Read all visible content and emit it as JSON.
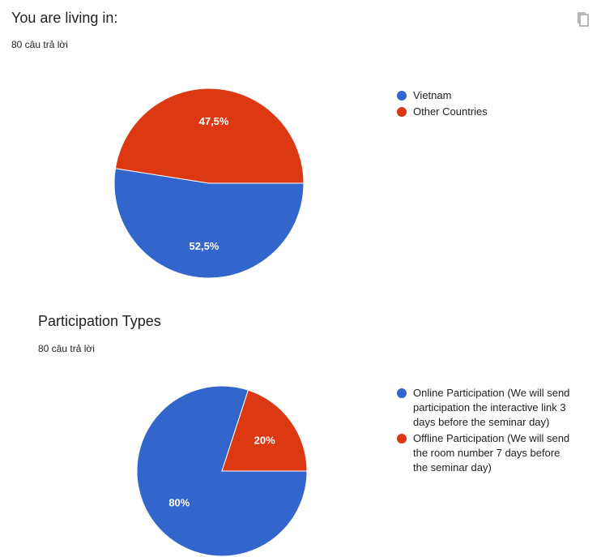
{
  "header": {
    "copy_icon": "copy-icon"
  },
  "chart_data": [
    {
      "type": "pie",
      "title": "You are living in:",
      "responses": "80 câu trả lời",
      "slices": [
        {
          "name": "Vietnam",
          "value": 52.5,
          "label": "52,5%",
          "color": "#3366cc"
        },
        {
          "name": "Other Countries",
          "value": 47.5,
          "label": "47,5%",
          "color": "#dc3912"
        }
      ],
      "legend_position": "right"
    },
    {
      "type": "pie",
      "title": "Participation Types",
      "responses": "80 câu trả lời",
      "slices": [
        {
          "name": "Online Participation (We will send participation the interactive link 3 days before the seminar day)",
          "value": 80,
          "label": "80%",
          "color": "#3366cc"
        },
        {
          "name": "Offline Participation (We will send the room number 7 days before the seminar day)",
          "value": 20,
          "label": "20%",
          "color": "#dc3912"
        }
      ],
      "legend_position": "right"
    }
  ]
}
